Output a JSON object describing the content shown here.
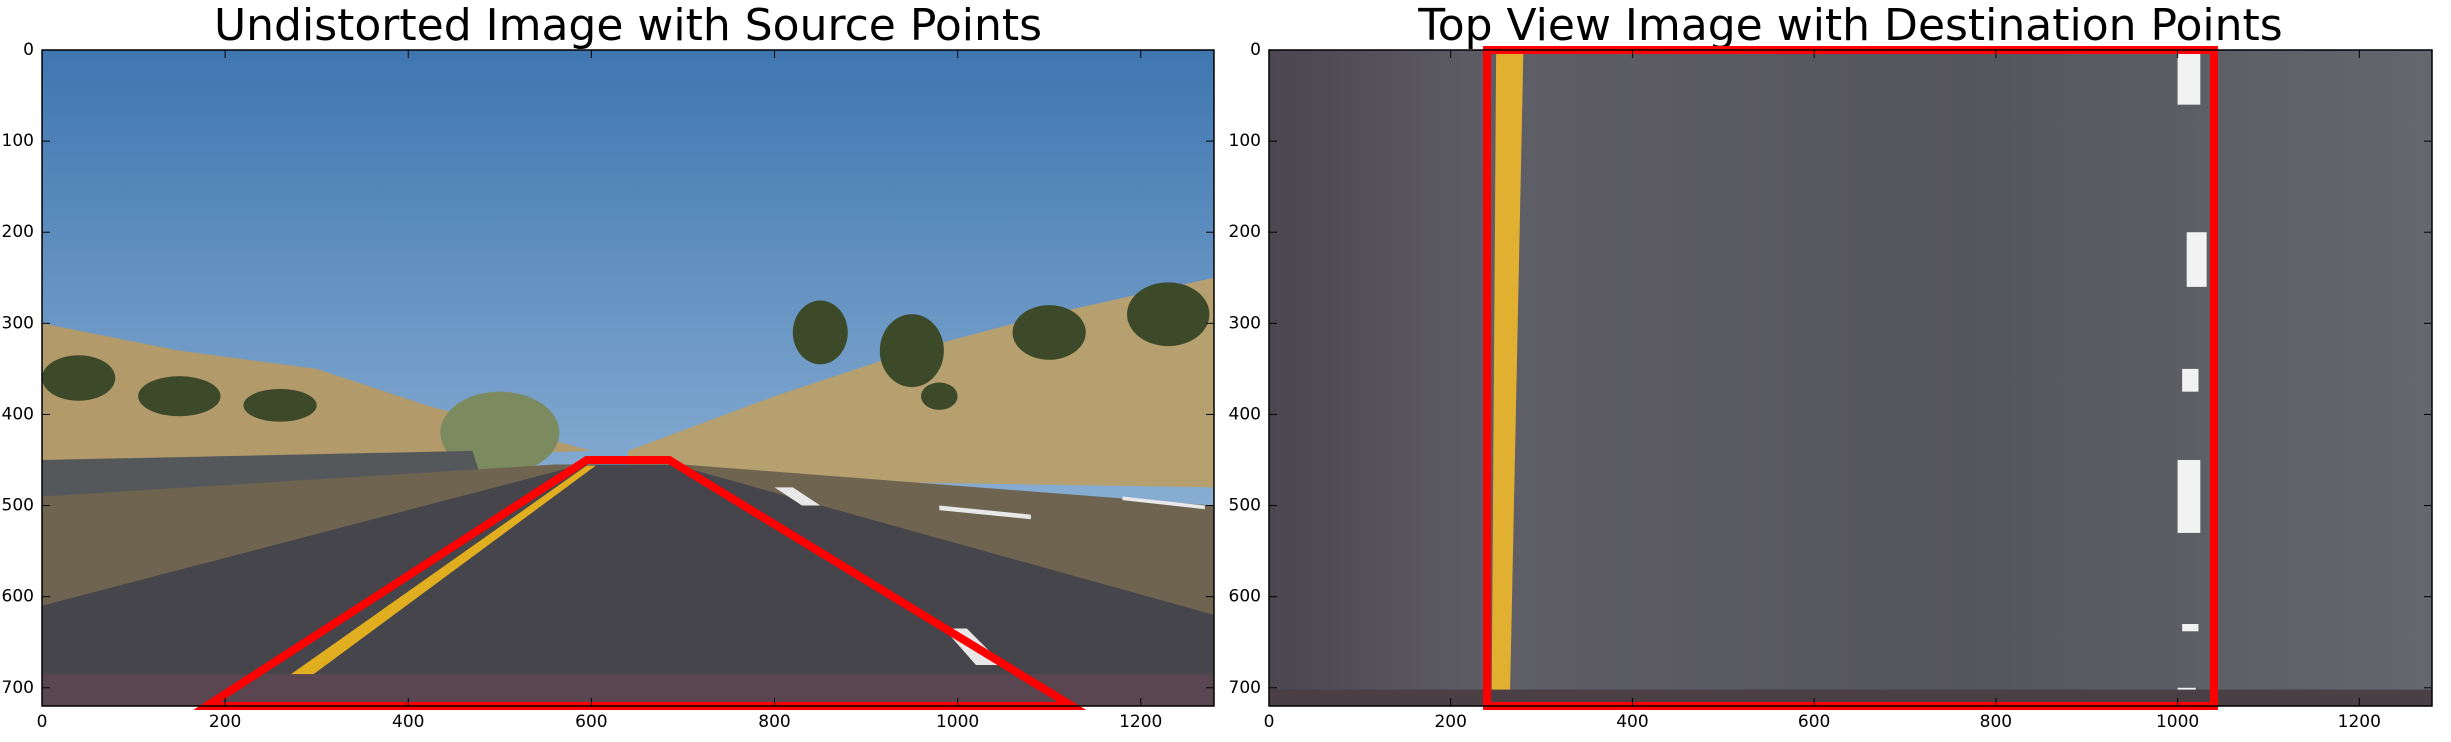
{
  "chart_data": [
    {
      "type": "image",
      "title": "Undistorted Image with Source Points",
      "xlim": [
        0,
        1280
      ],
      "ylim": [
        720,
        0
      ],
      "xticks": [
        0,
        200,
        400,
        600,
        800,
        1000,
        1200
      ],
      "yticks": [
        0,
        100,
        200,
        300,
        400,
        500,
        600,
        700
      ],
      "points": {
        "color": "#ff0000",
        "x": [
          180,
          595,
          685,
          1125
        ],
        "y": [
          720,
          450,
          450,
          720
        ]
      }
    },
    {
      "type": "image",
      "title": "Top View Image with Destination Points",
      "xlim": [
        0,
        1280
      ],
      "ylim": [
        720,
        0
      ],
      "xticks": [
        0,
        200,
        400,
        600,
        800,
        1000,
        1200
      ],
      "yticks": [
        0,
        100,
        200,
        300,
        400,
        500,
        600,
        700
      ],
      "points": {
        "color": "#ff0000",
        "x": [
          240,
          240,
          1040,
          1040
        ],
        "y": [
          720,
          0,
          0,
          720
        ]
      }
    }
  ]
}
